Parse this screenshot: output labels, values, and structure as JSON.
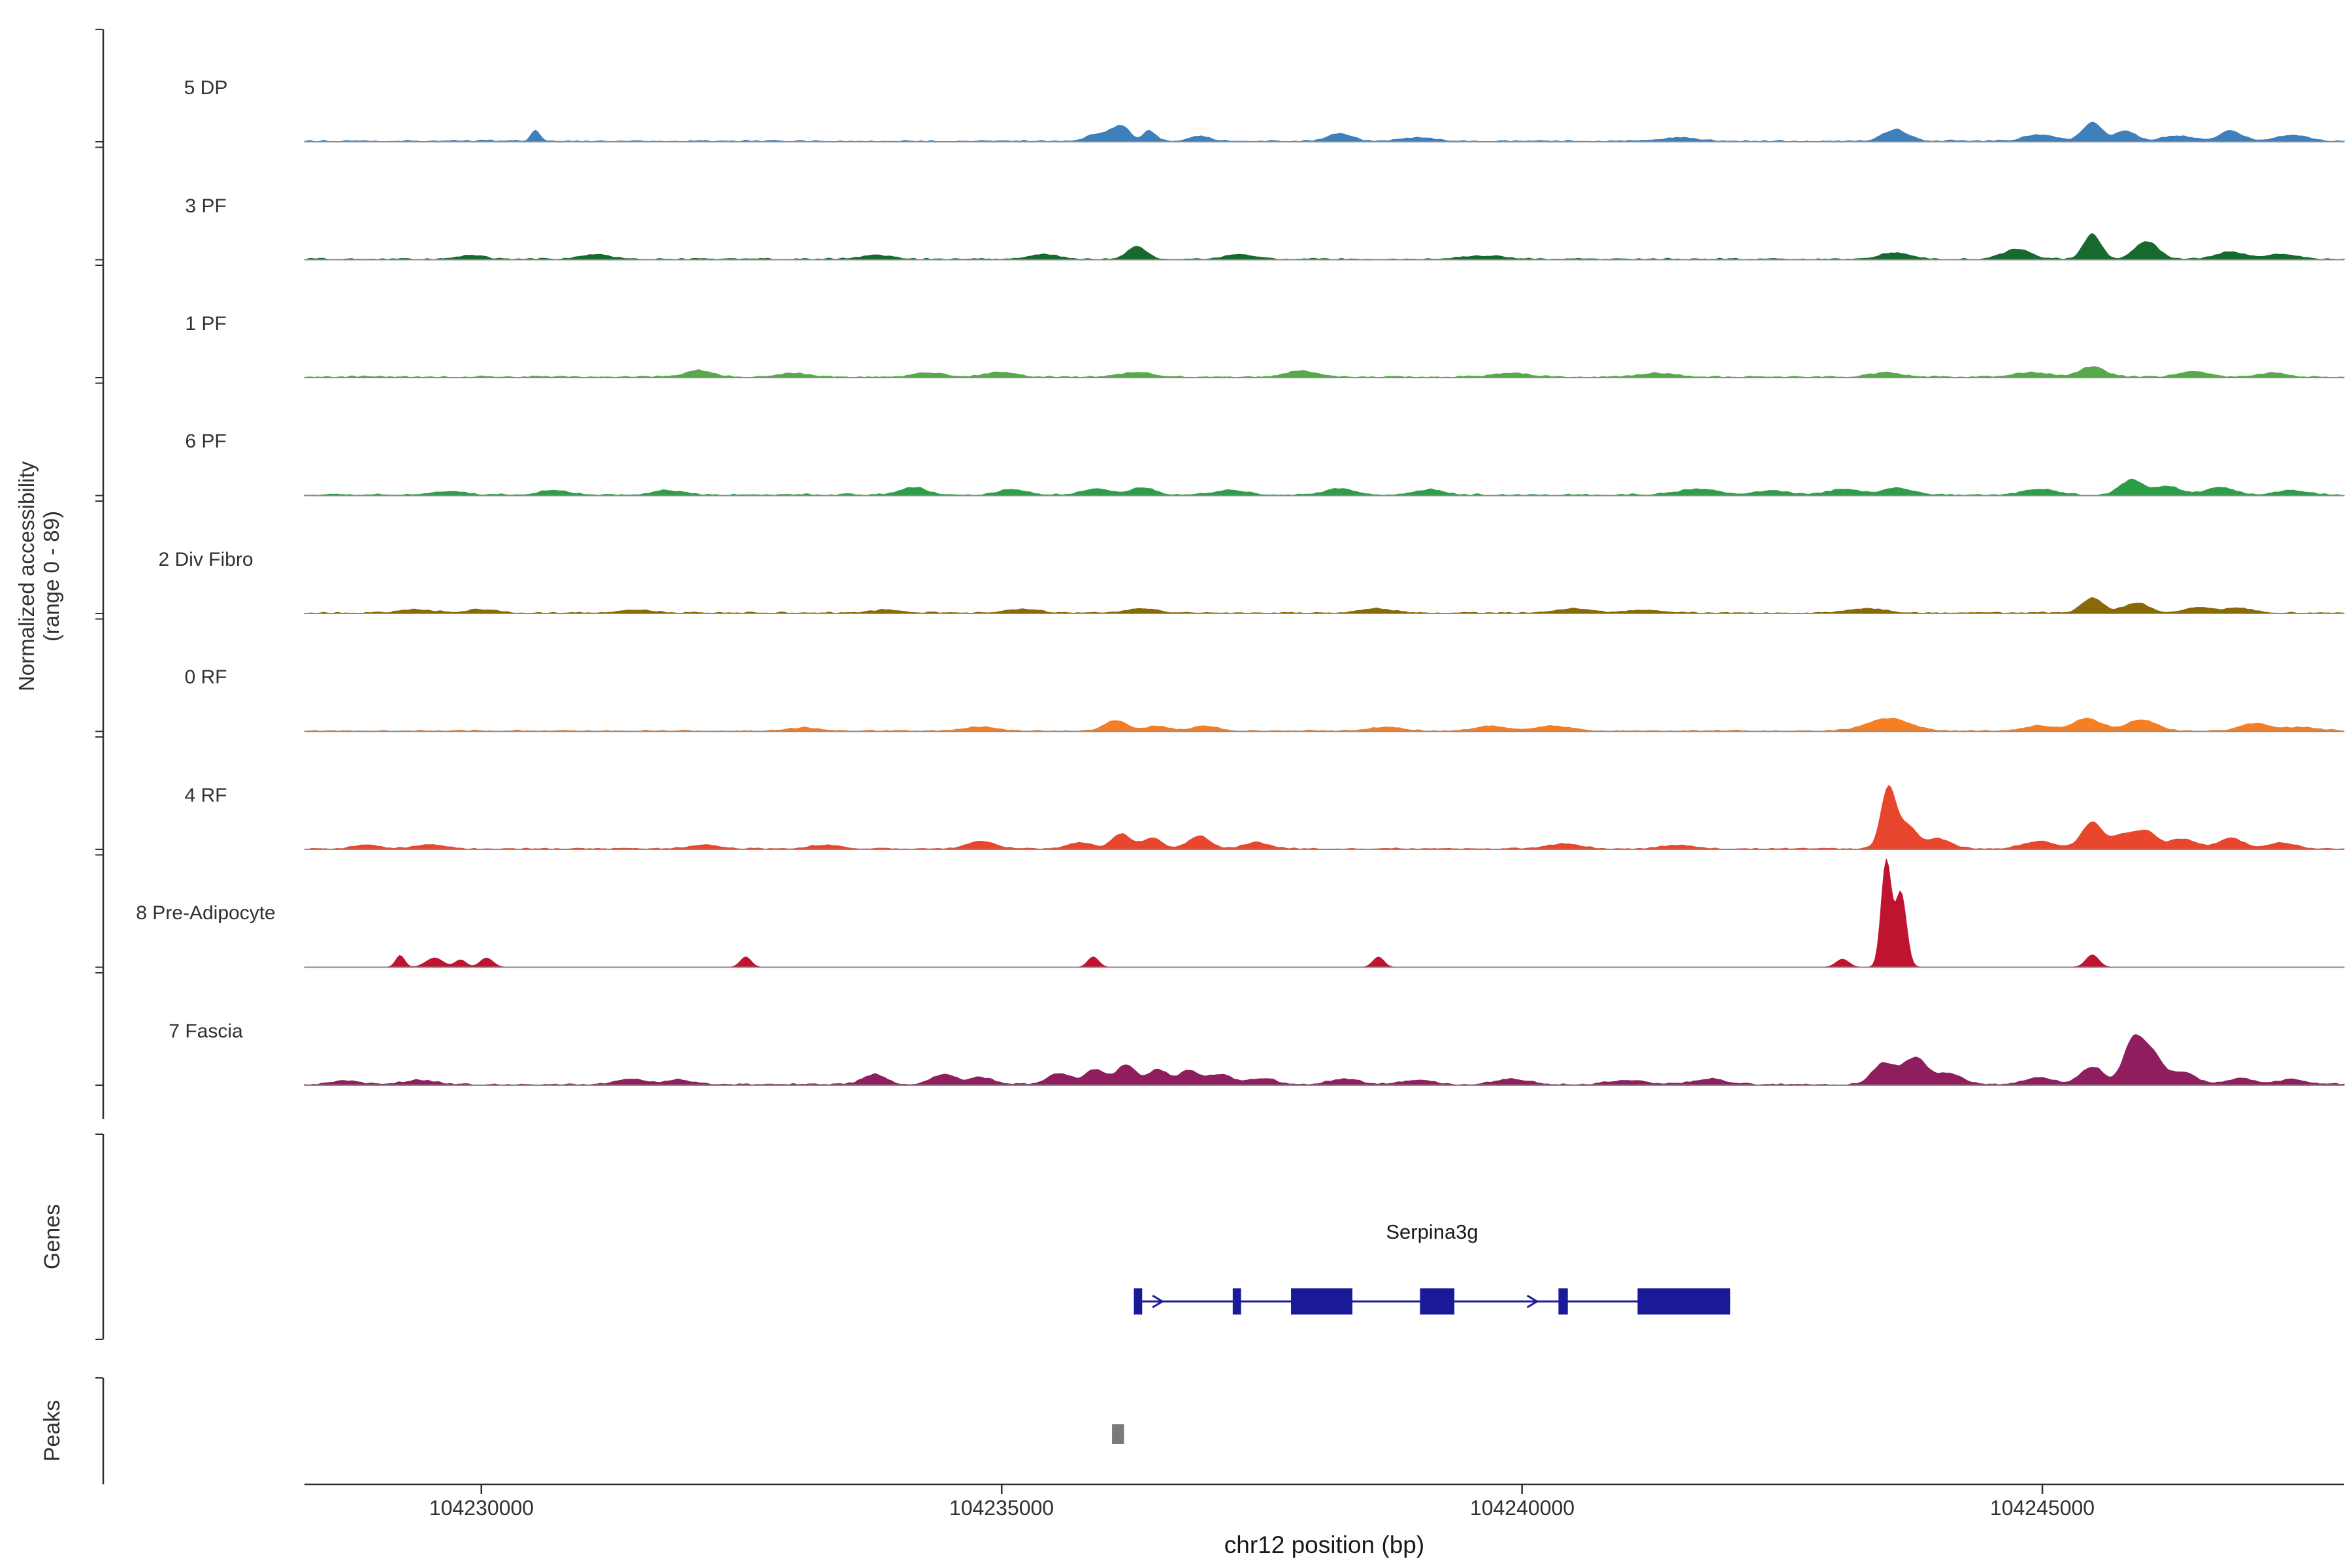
{
  "figure": {
    "y_axis_label_line1": "Normalized accessibility",
    "y_axis_label_line2": "(range 0 - 89)",
    "genes_section_label": "Genes",
    "peaks_section_label": "Peaks",
    "x_axis_title": "chr12 position (bp)"
  },
  "chart_data": {
    "type": "area",
    "subtype": "genome-coverage-tracks",
    "region": {
      "chrom": "chr12",
      "start": 104228300,
      "end": 104247900
    },
    "value_range": [
      0,
      89
    ],
    "x_ticks": [
      104230000,
      104235000,
      104240000,
      104245000
    ],
    "x_tick_labels": [
      "104230000",
      "104235000",
      "104240000",
      "104245000"
    ],
    "x_axis_title": "chr12 position (bp)",
    "tracks": [
      {
        "label": "5 DP",
        "color": "#3f7fba",
        "noise": 1.6,
        "seed": 1,
        "peaks": [
          [
            104230520,
            40,
            9
          ],
          [
            104235950,
            120,
            6
          ],
          [
            104236150,
            80,
            11
          ],
          [
            104236420,
            60,
            8
          ],
          [
            104236900,
            100,
            4
          ],
          [
            104238250,
            120,
            6
          ],
          [
            104239000,
            150,
            3
          ],
          [
            104241500,
            200,
            2.5
          ],
          [
            104243590,
            120,
            9
          ],
          [
            104244980,
            150,
            5
          ],
          [
            104245480,
            90,
            15
          ],
          [
            104245800,
            100,
            8
          ],
          [
            104246300,
            150,
            4
          ],
          [
            104246810,
            110,
            8
          ],
          [
            104247400,
            150,
            5
          ]
        ]
      },
      {
        "label": "3 PF",
        "color": "#17692e",
        "noise": 1.5,
        "seed": 2,
        "peaks": [
          [
            104229900,
            120,
            3
          ],
          [
            104231100,
            150,
            3.5
          ],
          [
            104233800,
            150,
            3
          ],
          [
            104235400,
            150,
            3.5
          ],
          [
            104236300,
            90,
            10
          ],
          [
            104237300,
            150,
            3.5
          ],
          [
            104239600,
            200,
            2.5
          ],
          [
            104243590,
            150,
            5
          ],
          [
            104244760,
            130,
            8
          ],
          [
            104245480,
            80,
            20
          ],
          [
            104246000,
            110,
            14
          ],
          [
            104246810,
            130,
            6
          ],
          [
            104247300,
            150,
            4
          ]
        ]
      },
      {
        "label": "1 PF",
        "color": "#5aa84e",
        "noise": 1.6,
        "seed": 3,
        "peaks": [
          [
            104232100,
            130,
            5
          ],
          [
            104233000,
            150,
            3
          ],
          [
            104234300,
            150,
            3.5
          ],
          [
            104235000,
            150,
            3.5
          ],
          [
            104236300,
            150,
            4
          ],
          [
            104237880,
            140,
            5
          ],
          [
            104239900,
            180,
            3
          ],
          [
            104241300,
            180,
            3
          ],
          [
            104243500,
            150,
            3.5
          ],
          [
            104244900,
            180,
            3.5
          ],
          [
            104245480,
            120,
            8
          ],
          [
            104246450,
            140,
            4.5
          ],
          [
            104247200,
            150,
            3
          ]
        ]
      },
      {
        "label": "6 PF",
        "color": "#2d9e48",
        "noise": 1.6,
        "seed": 4,
        "peaks": [
          [
            104229700,
            150,
            3
          ],
          [
            104230700,
            150,
            3.5
          ],
          [
            104231800,
            150,
            3.5
          ],
          [
            104234150,
            130,
            6
          ],
          [
            104235100,
            130,
            4.5
          ],
          [
            104235900,
            130,
            5
          ],
          [
            104236350,
            120,
            6
          ],
          [
            104237200,
            150,
            4
          ],
          [
            104238250,
            130,
            5
          ],
          [
            104239100,
            150,
            4
          ],
          [
            104241700,
            200,
            4.5
          ],
          [
            104242400,
            150,
            3.5
          ],
          [
            104243100,
            150,
            4.5
          ],
          [
            104243600,
            130,
            5.5
          ],
          [
            104244980,
            150,
            4.5
          ],
          [
            104245860,
            110,
            12
          ],
          [
            104246200,
            120,
            7
          ],
          [
            104246700,
            130,
            6.5
          ],
          [
            104247400,
            150,
            3.5
          ]
        ]
      },
      {
        "label": "2 Div Fibro",
        "color": "#8a6a06",
        "noise": 1.4,
        "seed": 5,
        "peaks": [
          [
            104229400,
            150,
            2.5
          ],
          [
            104230000,
            150,
            2.5
          ],
          [
            104231500,
            150,
            2.5
          ],
          [
            104233900,
            150,
            2.5
          ],
          [
            104235200,
            150,
            3
          ],
          [
            104236350,
            140,
            3.5
          ],
          [
            104238600,
            150,
            3.5
          ],
          [
            104240500,
            180,
            3.5
          ],
          [
            104241200,
            150,
            2.5
          ],
          [
            104243300,
            180,
            3.5
          ],
          [
            104245480,
            100,
            12
          ],
          [
            104245900,
            120,
            8
          ],
          [
            104246500,
            140,
            4.5
          ],
          [
            104246900,
            140,
            3.5
          ]
        ]
      },
      {
        "label": "0 RF",
        "color": "#f57f22",
        "noise": 1.3,
        "seed": 6,
        "peaks": [
          [
            104233100,
            150,
            2.5
          ],
          [
            104234800,
            150,
            3
          ],
          [
            104236100,
            110,
            8.5
          ],
          [
            104236500,
            100,
            4
          ],
          [
            104236950,
            120,
            4
          ],
          [
            104238700,
            150,
            3
          ],
          [
            104239700,
            150,
            4
          ],
          [
            104240300,
            160,
            4
          ],
          [
            104243520,
            200,
            10
          ],
          [
            104244980,
            150,
            4
          ],
          [
            104245430,
            130,
            10
          ],
          [
            104245950,
            140,
            9
          ],
          [
            104247050,
            140,
            6
          ],
          [
            104247500,
            150,
            3
          ]
        ]
      },
      {
        "label": "4 RF",
        "color": "#e8472d",
        "noise": 1.3,
        "seed": 7,
        "peaks": [
          [
            104228900,
            120,
            3
          ],
          [
            104229500,
            130,
            3.5
          ],
          [
            104232150,
            150,
            3
          ],
          [
            104233300,
            150,
            3
          ],
          [
            104234800,
            130,
            6
          ],
          [
            104235750,
            120,
            5
          ],
          [
            104236150,
            90,
            12
          ],
          [
            104236450,
            90,
            9
          ],
          [
            104236900,
            100,
            10.5
          ],
          [
            104237450,
            120,
            5
          ],
          [
            104240400,
            160,
            4
          ],
          [
            104241500,
            160,
            3
          ],
          [
            104243520,
            70,
            48
          ],
          [
            104243700,
            90,
            18
          ],
          [
            104244000,
            120,
            8
          ],
          [
            104244980,
            150,
            6
          ],
          [
            104245480,
            100,
            21
          ],
          [
            104245780,
            100,
            11
          ],
          [
            104246000,
            100,
            14
          ],
          [
            104246350,
            120,
            8
          ],
          [
            104246810,
            120,
            8.5
          ],
          [
            104247300,
            130,
            5
          ]
        ]
      },
      {
        "label": "8 Pre-Adipocyte",
        "color": "#bf1330",
        "noise": 0.25,
        "seed": 8,
        "peaks": [
          [
            104229220,
            40,
            10
          ],
          [
            104229550,
            80,
            7.5
          ],
          [
            104229800,
            50,
            6
          ],
          [
            104230050,
            60,
            7.5
          ],
          [
            104232540,
            50,
            8.5
          ],
          [
            104235880,
            50,
            8.5
          ],
          [
            104238620,
            50,
            8.5
          ],
          [
            104243080,
            60,
            6.5
          ],
          [
            104243500,
            45,
            89
          ],
          [
            104243640,
            50,
            62
          ],
          [
            104245480,
            60,
            10
          ]
        ]
      },
      {
        "label": "7 Fascia",
        "color": "#8f1e5e",
        "noise": 1.7,
        "seed": 9,
        "peaks": [
          [
            104228700,
            130,
            3
          ],
          [
            104229400,
            140,
            3.5
          ],
          [
            104231450,
            140,
            4.5
          ],
          [
            104231900,
            130,
            3.5
          ],
          [
            104233780,
            110,
            8
          ],
          [
            104234440,
            110,
            8
          ],
          [
            104234800,
            120,
            5.5
          ],
          [
            104235550,
            110,
            9
          ],
          [
            104235900,
            100,
            12
          ],
          [
            104236200,
            90,
            16
          ],
          [
            104236500,
            90,
            12
          ],
          [
            104236800,
            100,
            11
          ],
          [
            104237100,
            110,
            8
          ],
          [
            104237500,
            130,
            5
          ],
          [
            104238300,
            140,
            4.5
          ],
          [
            104239000,
            150,
            3.5
          ],
          [
            104239900,
            150,
            4.5
          ],
          [
            104241000,
            160,
            3.5
          ],
          [
            104241800,
            150,
            4.5
          ],
          [
            104243480,
            110,
            17
          ],
          [
            104243780,
            110,
            21
          ],
          [
            104244100,
            120,
            9
          ],
          [
            104244980,
            140,
            5.5
          ],
          [
            104245480,
            110,
            14
          ],
          [
            104245870,
            90,
            34
          ],
          [
            104246050,
            100,
            24
          ],
          [
            104246350,
            120,
            10
          ],
          [
            104246900,
            130,
            5
          ],
          [
            104247400,
            140,
            4
          ]
        ]
      }
    ],
    "gene": {
      "label": "Serpina3g",
      "color": "#1a1a99",
      "start": 104236270,
      "end": 104242000,
      "strand": "+",
      "exons": [
        [
          104236270,
          104236350
        ],
        [
          104237220,
          104237300
        ],
        [
          104237780,
          104238370
        ],
        [
          104239020,
          104239350
        ],
        [
          104240350,
          104240440
        ],
        [
          104241110,
          104242000
        ]
      ],
      "arrow_positions": [
        104236500,
        104240100
      ]
    },
    "peaks_track": {
      "color": "#7a7a7a",
      "intervals": [
        [
          104236060,
          104236175
        ]
      ]
    }
  }
}
